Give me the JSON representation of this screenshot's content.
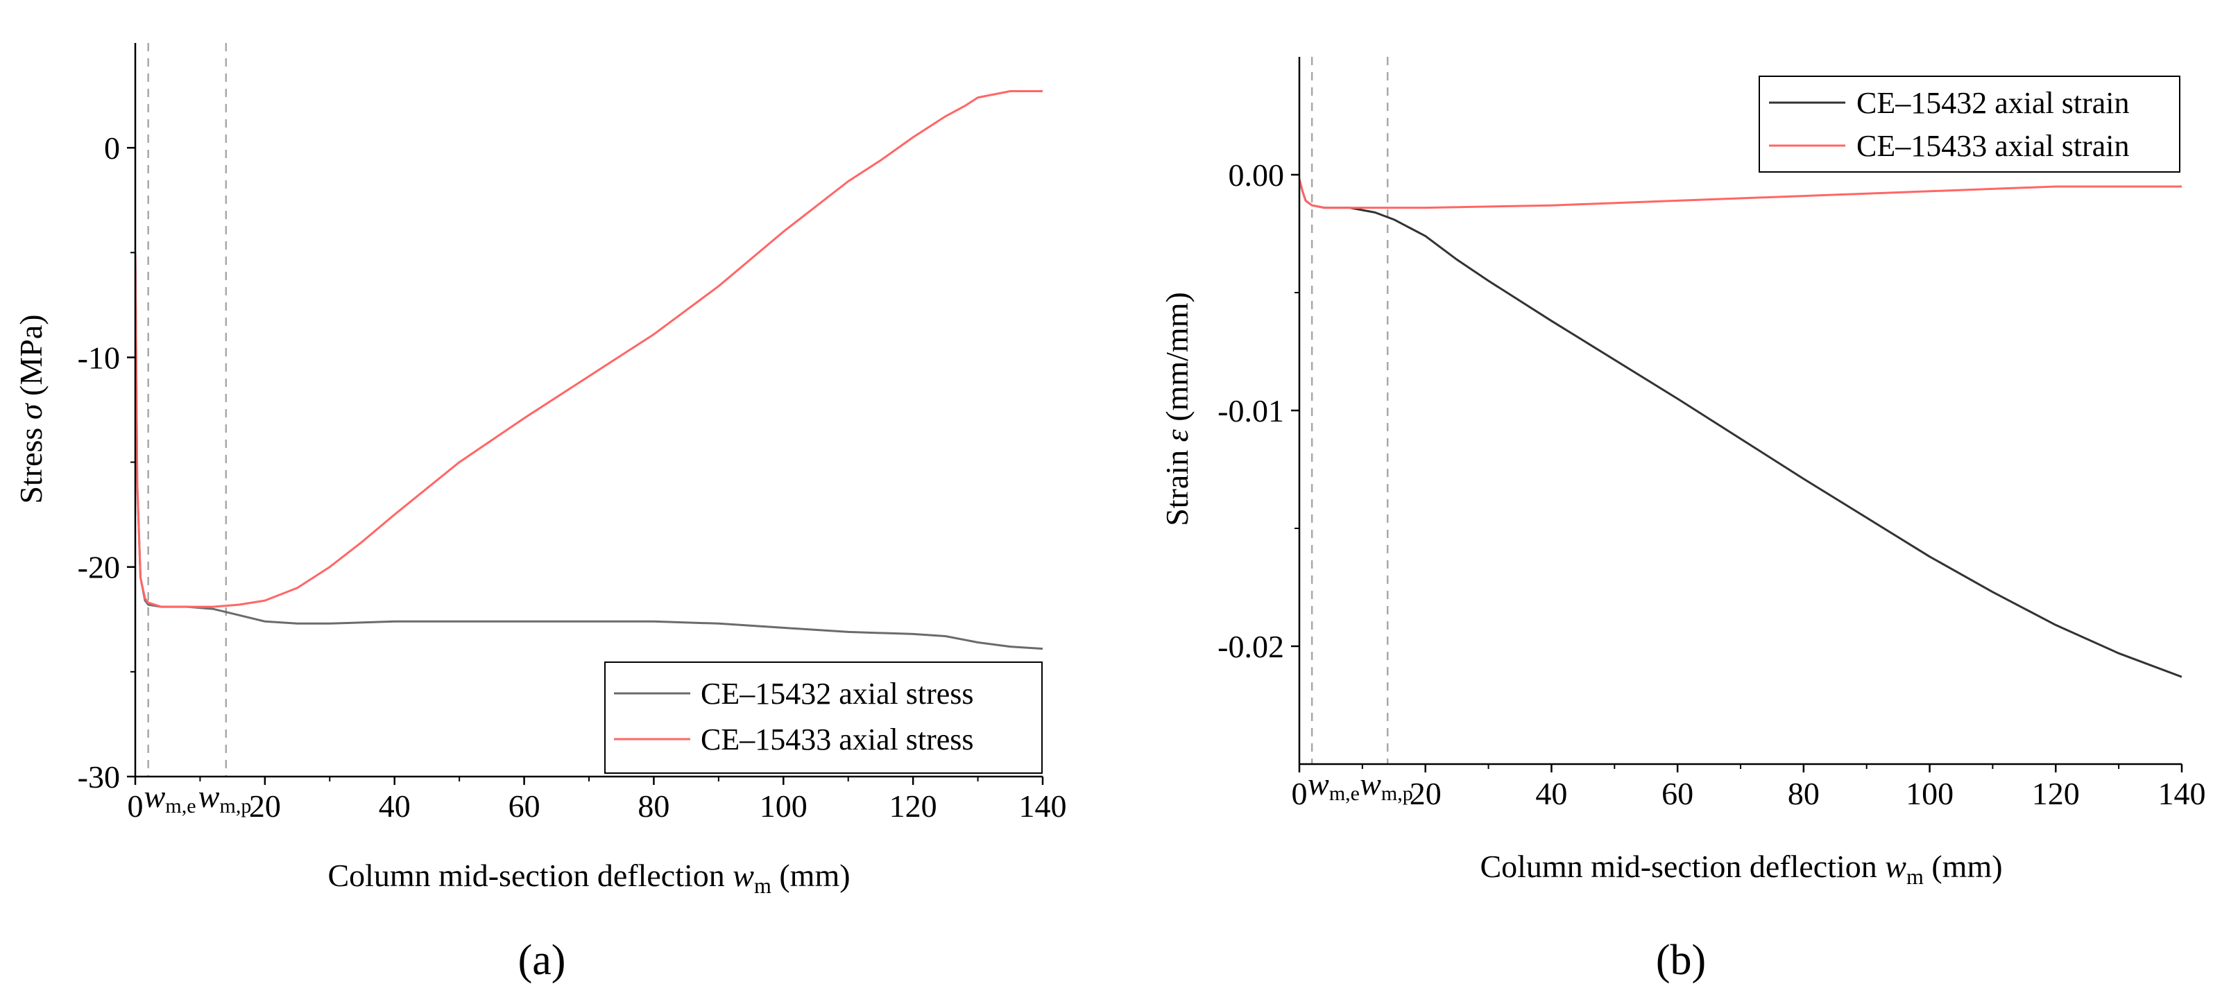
{
  "chart_data": [
    {
      "type": "line",
      "panel_label": "(a)",
      "xlabel": "Column mid-section deflection ",
      "xlabel_var": "w",
      "xlabel_sub": "m",
      "xlabel_unit": " (mm)",
      "ylabel": "Stress ",
      "ylabel_var": "σ",
      "ylabel_unit": " (MPa)",
      "xlim": [
        0,
        140
      ],
      "ylim": [
        -30,
        5
      ],
      "xticks": [
        0,
        20,
        40,
        60,
        80,
        100,
        120,
        140
      ],
      "yticks": [
        -30,
        -20,
        -10,
        0
      ],
      "ytick_labels": [
        "-30",
        "-20",
        "-10",
        "0"
      ],
      "legend_position": "bottom-right",
      "annotations": [
        {
          "var": "w",
          "sub": "m,e",
          "x": 2
        },
        {
          "var": "w",
          "sub": "m,p",
          "x": 14
        }
      ],
      "series": [
        {
          "name": "CE–15432 axial stress",
          "color": "#6b6b6b",
          "x": [
            0,
            0.3,
            0.8,
            1.5,
            2,
            4,
            8,
            12,
            16,
            20,
            25,
            30,
            40,
            60,
            80,
            90,
            100,
            110,
            120,
            125,
            130,
            135,
            140
          ],
          "y": [
            -5,
            -16,
            -20.5,
            -21.6,
            -21.8,
            -21.9,
            -21.9,
            -22.0,
            -22.3,
            -22.6,
            -22.7,
            -22.7,
            -22.6,
            -22.6,
            -22.6,
            -22.7,
            -22.9,
            -23.1,
            -23.2,
            -23.3,
            -23.6,
            -23.8,
            -23.9
          ]
        },
        {
          "name": "CE–15433 axial stress",
          "color": "#ff6666",
          "x": [
            0,
            0.3,
            0.8,
            1.5,
            2,
            4,
            8,
            12,
            16,
            20,
            25,
            30,
            35,
            40,
            50,
            60,
            70,
            80,
            90,
            100,
            110,
            115,
            120,
            125,
            128,
            130,
            135,
            140
          ],
          "y": [
            -5,
            -16,
            -20.5,
            -21.5,
            -21.7,
            -21.9,
            -21.9,
            -21.9,
            -21.8,
            -21.6,
            -21.0,
            -20.0,
            -18.8,
            -17.5,
            -15.0,
            -12.9,
            -10.9,
            -8.9,
            -6.6,
            -4.0,
            -1.6,
            -0.6,
            0.5,
            1.5,
            2.0,
            2.4,
            2.7,
            2.7
          ]
        }
      ]
    },
    {
      "type": "line",
      "panel_label": "(b)",
      "xlabel": "Column mid-section deflection ",
      "xlabel_var": "w",
      "xlabel_sub": "m",
      "xlabel_unit": " (mm)",
      "ylabel": "Strain ",
      "ylabel_var": "ε",
      "ylabel_unit": " (mm/mm)",
      "xlim": [
        0,
        140
      ],
      "ylim": [
        -0.025,
        0.005
      ],
      "xticks": [
        0,
        20,
        40,
        60,
        80,
        100,
        120,
        140
      ],
      "yticks": [
        -0.02,
        -0.01,
        0.0
      ],
      "ytick_labels": [
        "-0.02",
        "-0.01",
        "0.00"
      ],
      "legend_position": "top-right",
      "annotations": [
        {
          "var": "w",
          "sub": "m,e",
          "x": 2
        },
        {
          "var": "w",
          "sub": "m,p",
          "x": 14
        }
      ],
      "series": [
        {
          "name": "CE–15432 axial strain",
          "color": "#333333",
          "x": [
            0,
            0.5,
            1,
            2,
            4,
            8,
            12,
            15,
            20,
            25,
            30,
            40,
            60,
            80,
            100,
            110,
            120,
            130,
            140
          ],
          "y": [
            -0.0002,
            -0.0007,
            -0.0011,
            -0.0013,
            -0.0014,
            -0.0014,
            -0.0016,
            -0.0019,
            -0.0026,
            -0.0036,
            -0.0045,
            -0.0062,
            -0.0095,
            -0.0129,
            -0.0162,
            -0.0177,
            -0.0191,
            -0.0203,
            -0.0213
          ]
        },
        {
          "name": "CE–15433 axial strain",
          "color": "#ff6666",
          "x": [
            0,
            0.5,
            1,
            2,
            4,
            10,
            20,
            40,
            60,
            80,
            100,
            120,
            130,
            140
          ],
          "y": [
            -0.0002,
            -0.0007,
            -0.0011,
            -0.0013,
            -0.0014,
            -0.0014,
            -0.0014,
            -0.0013,
            -0.0011,
            -0.0009,
            -0.0007,
            -0.0005,
            -0.0005,
            -0.0005
          ]
        }
      ]
    }
  ]
}
